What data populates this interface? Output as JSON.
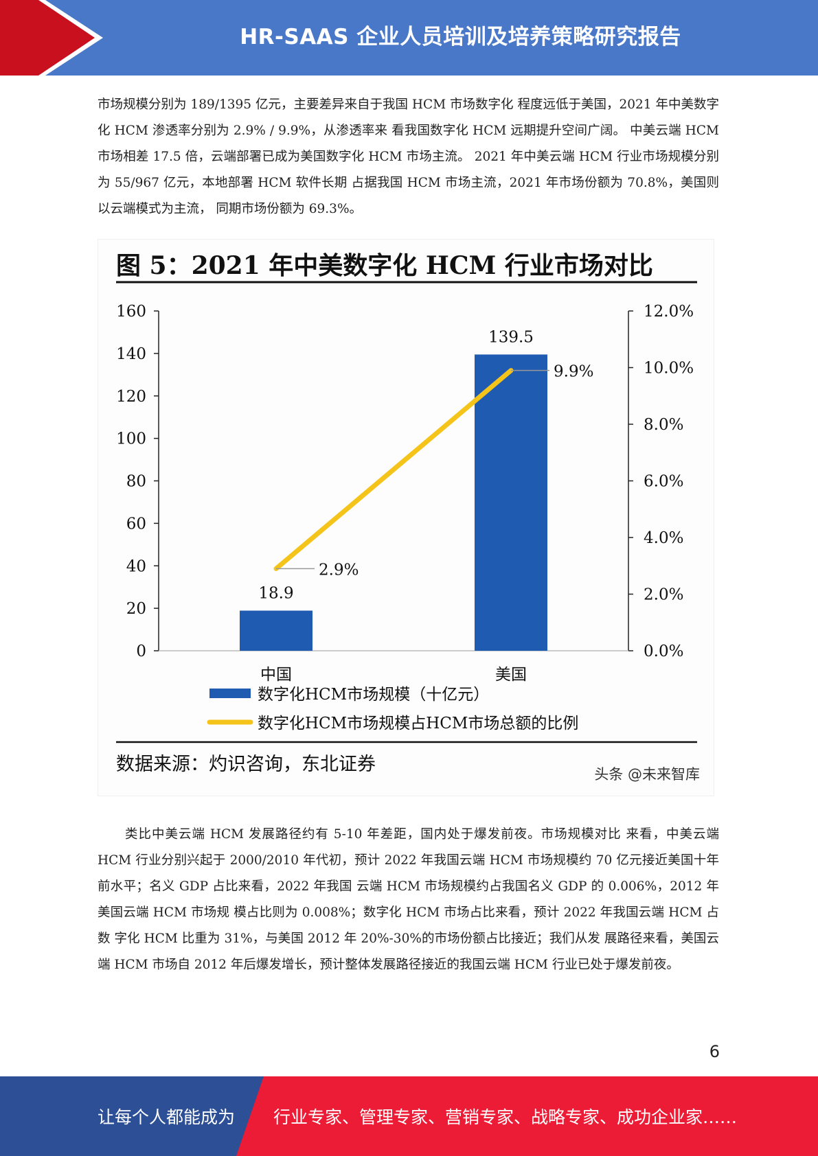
{
  "header": {
    "title": "HR-SAAS 企业人员培训及培养策略研究报告",
    "accent_blue": "#4a78c9",
    "accent_red": "#c8101e"
  },
  "paragraphs": {
    "p1": "市场规模分别为 189/1395 亿元，主要差异来自于我国 HCM 市场数字化 程度远低于美国，2021 年中美数字化 HCM 渗透率分别为 2.9% / 9.9%，从渗透率来 看我国数字化 HCM 远期提升空间广阔。 中美云端 HCM 市场相差 17.5 倍，云端部署已成为美国数字化 HCM 市场主流。 2021 年中美云端 HCM 行业市场规模分别为 55/967 亿元，本地部署 HCM 软件长期 占据我国 HCM 市场主流，2021 年市场份额为 70.8%，美国则以云端模式为主流， 同期市场份额为 69.3%。",
    "p2": "类比中美云端 HCM 发展路径约有 5-10 年差距，国内处于爆发前夜。市场规模对比 来看，中美云端 HCM 行业分别兴起于 2000/2010 年代初，预计 2022 年我国云端 HCM 市场规模约 70 亿元接近美国十年前水平；名义 GDP 占比来看，2022 年我国 云端 HCM 市场规模约占我国名义 GDP 的 0.006%，2012 年美国云端 HCM 市场规 模占比则为 0.008%；数字化 HCM 市场占比来看，预计 2022 年我国云端 HCM 占数 字化 HCM 比重为 31%，与美国 2012 年 20%-30%的市场份额占比接近；我们从发 展路径来看，美国云端 HCM 市场自 2012 年后爆发增长，预计整体发展路径接近的我国云端 HCM 行业已处于爆发前夜。"
  },
  "figure": {
    "title": "图 5：2021 年中美数字化 HCM 行业市场对比",
    "source": "数据来源：灼识咨询，东北证券",
    "watermark": "头条 @未来智库"
  },
  "chart_data": {
    "type": "bar",
    "categories": [
      "中国",
      "美国"
    ],
    "series": [
      {
        "name": "数字化HCM市场规模（十亿元）",
        "kind": "bar",
        "axis": "left",
        "values": [
          18.9,
          139.5
        ],
        "labels": [
          "18.9",
          "139.5"
        ],
        "color": "#1f5bb0"
      },
      {
        "name": "数字化HCM市场规模占HCM市场总额的比例",
        "kind": "line",
        "axis": "right",
        "values": [
          2.9,
          9.9
        ],
        "labels": [
          "2.9%",
          "9.9%"
        ],
        "color": "#f4c41b"
      }
    ],
    "ylim": [
      0,
      160
    ],
    "yticks": [
      "0",
      "20",
      "40",
      "60",
      "80",
      "100",
      "120",
      "140",
      "160"
    ],
    "y2lim": [
      0,
      12
    ],
    "y2ticks": [
      "0.0%",
      "2.0%",
      "4.0%",
      "6.0%",
      "8.0%",
      "10.0%",
      "12.0%"
    ],
    "legend_position": "bottom-left",
    "grid": false
  },
  "page_number": "6",
  "footer": {
    "left_text": "让每个人都能成为",
    "right_text": "行业专家、管理专家、营销专家、战略专家、成功企业家……",
    "left_color": "#2d4f96",
    "right_color": "#ec1c36"
  }
}
